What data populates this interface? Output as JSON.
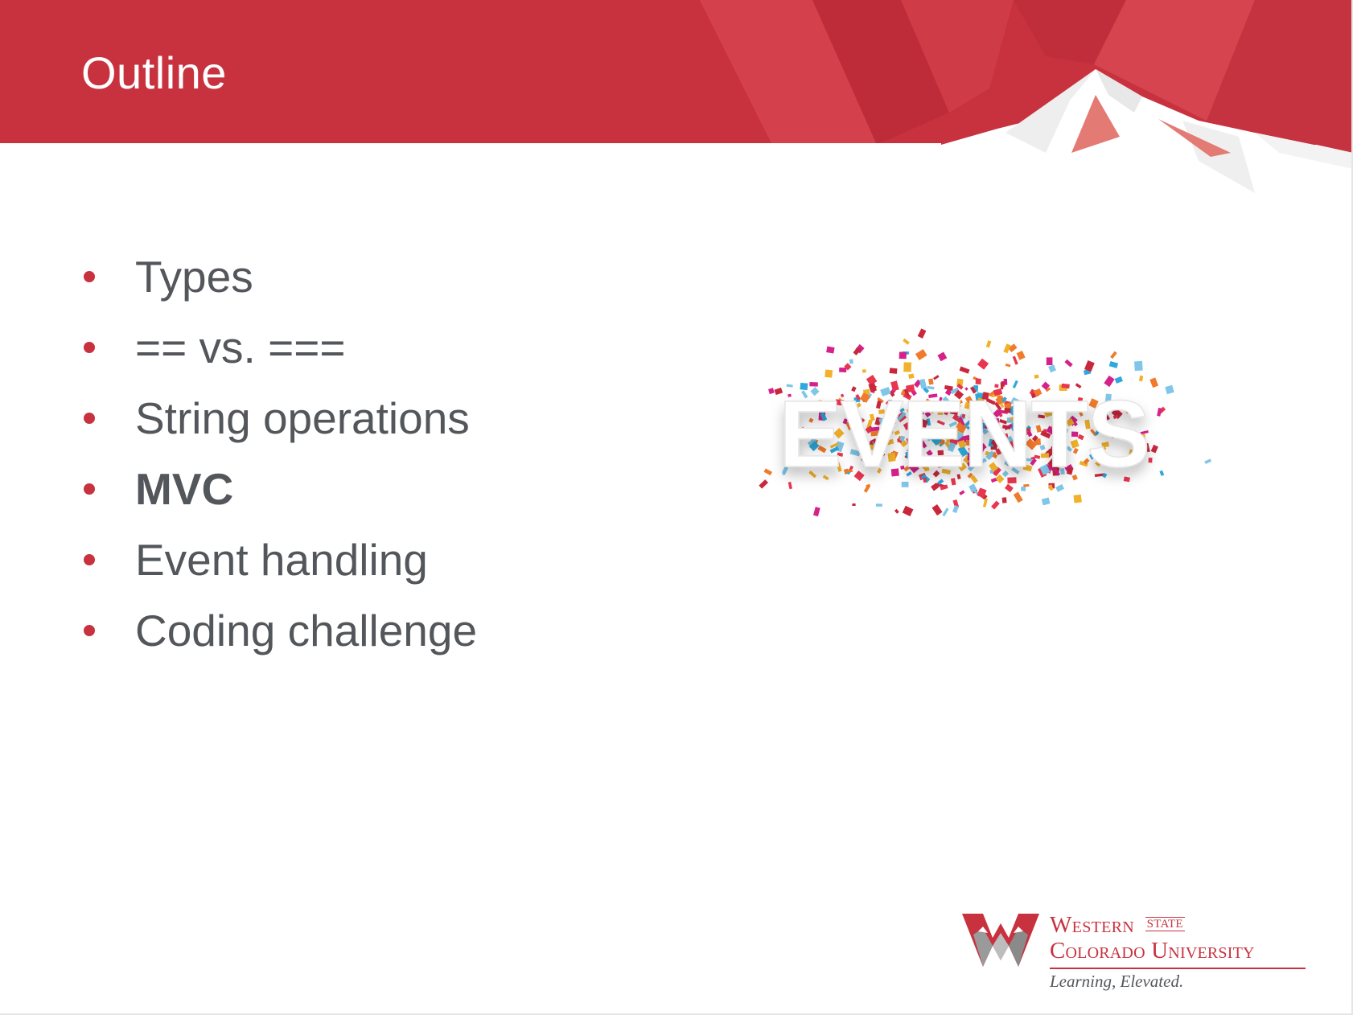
{
  "slide": {
    "title": "Outline",
    "bullets": [
      {
        "label": "Types",
        "bold": false
      },
      {
        "label": "== vs. ===",
        "bold": false
      },
      {
        "label": "String operations",
        "bold": false
      },
      {
        "label": "MVC",
        "bold": true
      },
      {
        "label": "Event handling",
        "bold": false
      },
      {
        "label": "Coding challenge",
        "bold": false
      }
    ],
    "image": {
      "text": "EVENTS"
    },
    "logo": {
      "line1": "Western",
      "state": "STATE",
      "line2": "Colorado University",
      "tagline": "Learning, Elevated."
    }
  },
  "colors": {
    "header_red": "#c8323f",
    "text_gray": "#53565a",
    "bullet_red": "#c8323f"
  },
  "icons": [
    "mountain-header-art",
    "confetti-image",
    "university-w-logo-icon"
  ]
}
